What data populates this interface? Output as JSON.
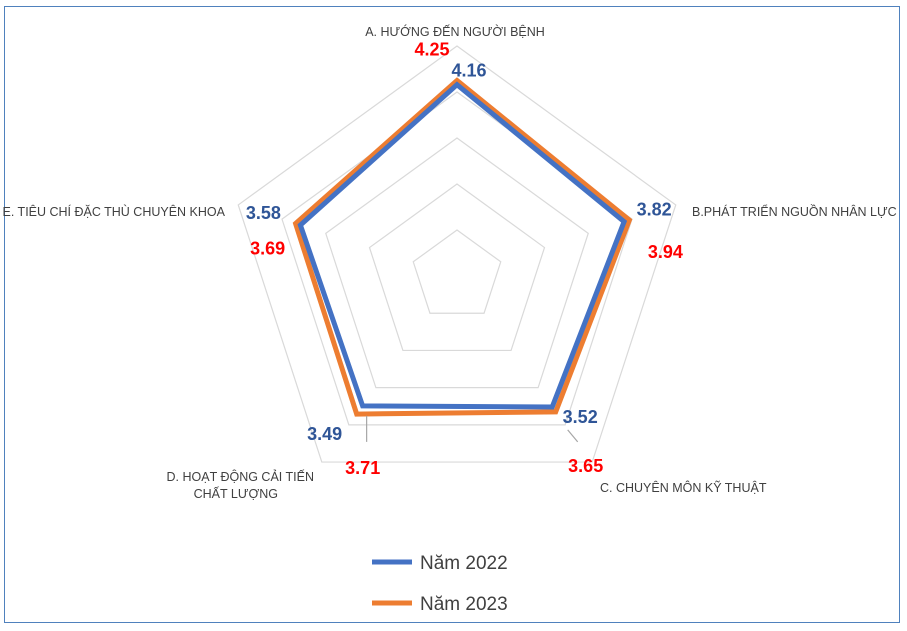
{
  "chart_data": {
    "type": "radar",
    "axes": [
      "A. HƯỚNG ĐẾN NGƯỜI BỆNH",
      "B.PHÁT TRIỂN NGUỒN NHÂN LỰC",
      "C. CHUYÊN MÔN KỸ THUẬT",
      "D. HOẠT ĐỘNG CẢI TIẾN CHẤT LƯỢNG",
      "E. TIÊU CHÍ ĐẶC THÙ CHUYÊN KHOA"
    ],
    "series": [
      {
        "name": "Năm 2022",
        "values": [
          4.16,
          3.82,
          3.52,
          3.49,
          3.58
        ],
        "labels": [
          "4.16",
          "3.82",
          "3.52",
          "3.49",
          "3.58"
        ]
      },
      {
        "name": "Năm 2023",
        "values": [
          4.25,
          3.94,
          3.65,
          3.71,
          3.69
        ],
        "labels": [
          "4.25",
          "3.94",
          "3.65",
          "3.71",
          "3.69"
        ]
      }
    ],
    "rlim": [
      0,
      5
    ],
    "grid": true,
    "legend_position": "bottom"
  },
  "colors": {
    "series_2022": "#4472c4",
    "series_2023": "#ed7d31",
    "label_2022": "#2f5597",
    "label_2023": "#ff0000",
    "grid": "#d9d9d9"
  }
}
